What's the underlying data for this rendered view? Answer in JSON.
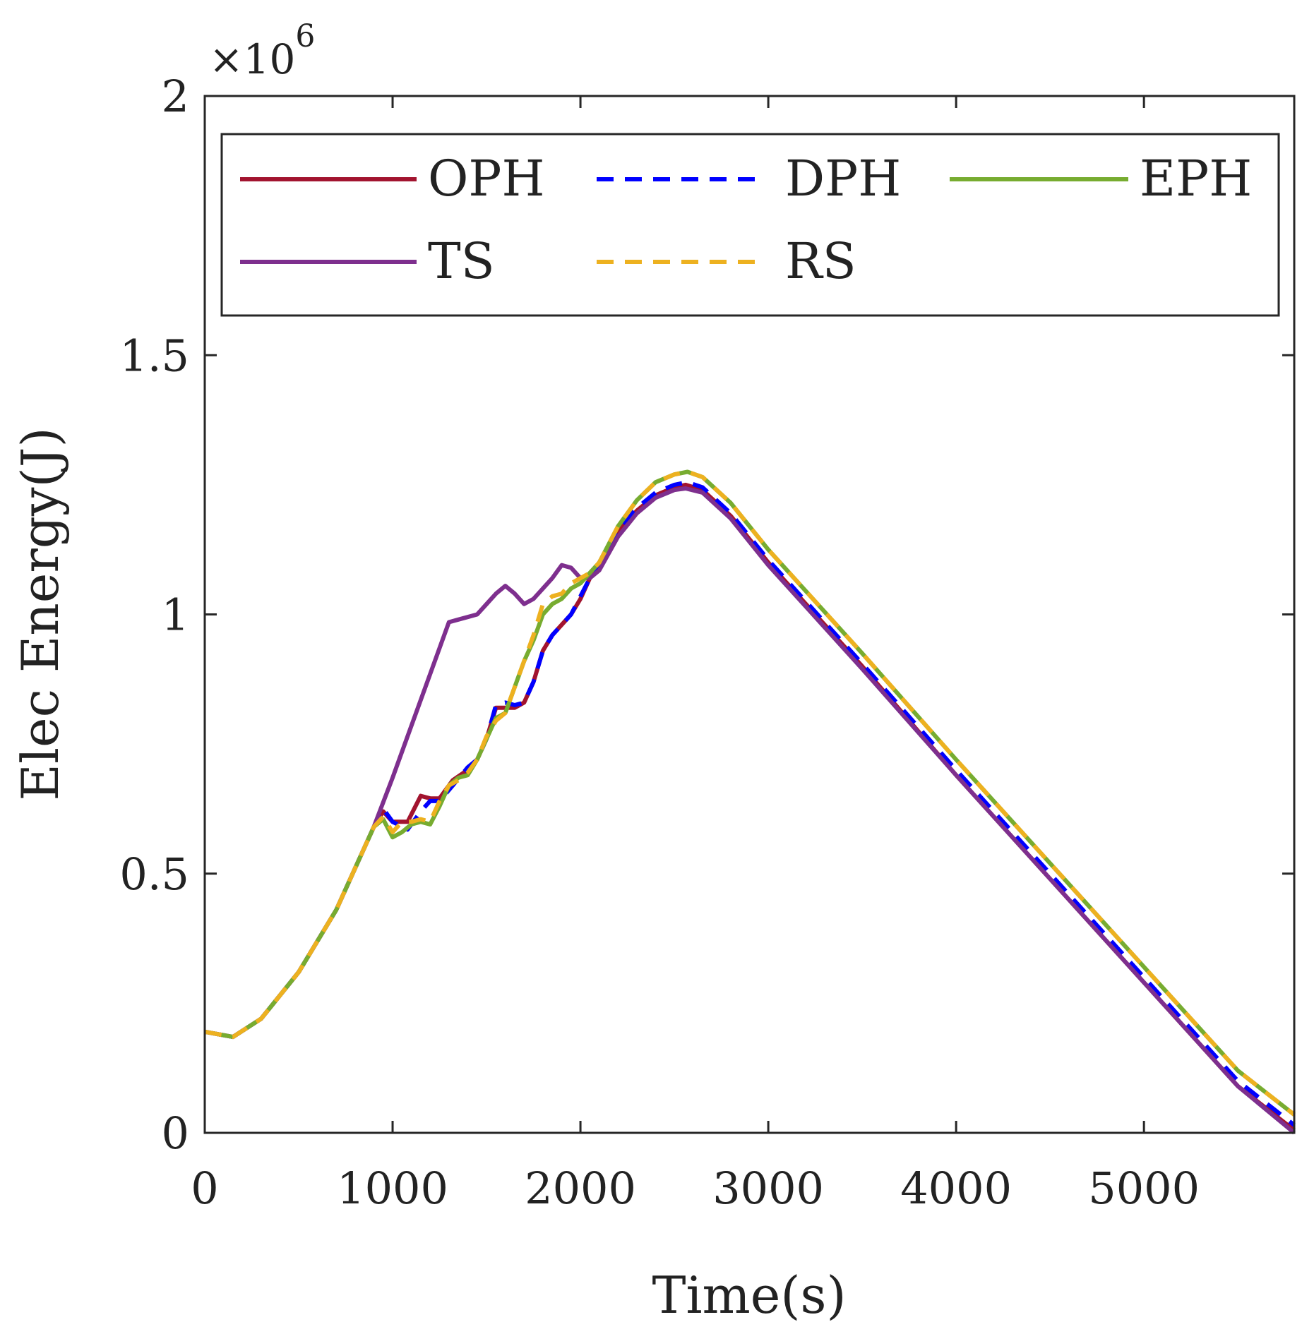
{
  "chart_data": {
    "type": "line",
    "xlabel": "Time(s)",
    "ylabel": "Elec Energy(J)",
    "y_multiplier": "×10",
    "y_multiplier_exponent": "6",
    "xlim": [
      0,
      5800
    ],
    "ylim": [
      0,
      2
    ],
    "x_ticks": [
      "0",
      "1000",
      "2000",
      "3000",
      "4000",
      "5000"
    ],
    "y_ticks": [
      "0",
      "0.5",
      "1",
      "1.5",
      "2"
    ],
    "grid": false,
    "legend_position": "top",
    "series": [
      {
        "name": "OPH",
        "color": "#a2142f",
        "dash": "solid",
        "x": [
          0,
          150,
          300,
          500,
          700,
          900,
          950,
          1000,
          1080,
          1150,
          1200,
          1250,
          1320,
          1400,
          1450,
          1500,
          1550,
          1600,
          1650,
          1700,
          1750,
          1800,
          1850,
          1900,
          1950,
          2000,
          2050,
          2100,
          2200,
          2300,
          2400,
          2500,
          2560,
          2650,
          2800,
          3000,
          3500,
          4000,
          4500,
          5000,
          5500,
          5800
        ],
        "y": [
          0.195,
          0.185,
          0.22,
          0.31,
          0.43,
          0.59,
          0.62,
          0.6,
          0.6,
          0.65,
          0.645,
          0.645,
          0.68,
          0.7,
          0.72,
          0.76,
          0.82,
          0.82,
          0.82,
          0.83,
          0.87,
          0.93,
          0.96,
          0.98,
          1.0,
          1.03,
          1.07,
          1.1,
          1.16,
          1.2,
          1.23,
          1.245,
          1.25,
          1.24,
          1.19,
          1.1,
          0.9,
          0.69,
          0.49,
          0.29,
          0.09,
          0.005
        ]
      },
      {
        "name": "DPH",
        "color": "#0000ff",
        "dash": "dashed",
        "x": [
          0,
          150,
          300,
          500,
          700,
          900,
          950,
          1000,
          1080,
          1150,
          1200,
          1250,
          1320,
          1400,
          1450,
          1500,
          1550,
          1600,
          1650,
          1700,
          1750,
          1800,
          1850,
          1900,
          1950,
          2000,
          2050,
          2100,
          2200,
          2300,
          2400,
          2500,
          2570,
          2650,
          2800,
          3000,
          3500,
          4000,
          4500,
          5000,
          5500,
          5800
        ],
        "y": [
          0.195,
          0.185,
          0.22,
          0.31,
          0.43,
          0.59,
          0.625,
          0.6,
          0.585,
          0.62,
          0.64,
          0.64,
          0.67,
          0.705,
          0.72,
          0.76,
          0.825,
          0.83,
          0.825,
          0.83,
          0.87,
          0.93,
          0.96,
          0.98,
          1.0,
          1.035,
          1.07,
          1.1,
          1.165,
          1.205,
          1.235,
          1.25,
          1.255,
          1.245,
          1.195,
          1.105,
          0.905,
          0.7,
          0.5,
          0.3,
          0.1,
          0.015
        ]
      },
      {
        "name": "EPH",
        "color": "#77ac30",
        "dash": "solid",
        "x": [
          0,
          150,
          300,
          500,
          700,
          900,
          950,
          1000,
          1050,
          1100,
          1150,
          1200,
          1250,
          1300,
          1350,
          1400,
          1450,
          1500,
          1550,
          1600,
          1650,
          1700,
          1750,
          1800,
          1850,
          1900,
          1950,
          2000,
          2050,
          2100,
          2200,
          2300,
          2400,
          2500,
          2570,
          2650,
          2800,
          3000,
          3500,
          4000,
          4500,
          5000,
          5500,
          5800
        ],
        "y": [
          0.195,
          0.185,
          0.22,
          0.31,
          0.43,
          0.59,
          0.605,
          0.57,
          0.58,
          0.595,
          0.6,
          0.595,
          0.63,
          0.67,
          0.685,
          0.69,
          0.72,
          0.76,
          0.8,
          0.81,
          0.86,
          0.91,
          0.95,
          1.0,
          1.02,
          1.03,
          1.05,
          1.06,
          1.08,
          1.1,
          1.17,
          1.22,
          1.255,
          1.27,
          1.275,
          1.265,
          1.215,
          1.125,
          0.925,
          0.72,
          0.52,
          0.32,
          0.12,
          0.035
        ]
      },
      {
        "name": "TS",
        "color": "#7e2f8e",
        "dash": "solid",
        "x": [
          0,
          150,
          300,
          500,
          700,
          900,
          1000,
          1100,
          1200,
          1300,
          1350,
          1400,
          1450,
          1500,
          1550,
          1600,
          1650,
          1700,
          1750,
          1800,
          1850,
          1900,
          1950,
          2000,
          2050,
          2100,
          2200,
          2300,
          2400,
          2500,
          2560,
          2650,
          2800,
          3000,
          3500,
          4000,
          4500,
          5000,
          5500,
          5800
        ],
        "y": [
          0.195,
          0.185,
          0.22,
          0.31,
          0.43,
          0.59,
          0.685,
          0.785,
          0.885,
          0.985,
          0.99,
          0.995,
          1.0,
          1.02,
          1.04,
          1.055,
          1.04,
          1.02,
          1.03,
          1.05,
          1.07,
          1.095,
          1.09,
          1.07,
          1.07,
          1.085,
          1.15,
          1.195,
          1.225,
          1.24,
          1.243,
          1.235,
          1.185,
          1.095,
          0.895,
          0.69,
          0.49,
          0.29,
          0.09,
          0.0
        ]
      },
      {
        "name": "RS",
        "color": "#edb120",
        "dash": "dashed",
        "x": [
          0,
          150,
          300,
          500,
          700,
          900,
          950,
          1000,
          1050,
          1100,
          1150,
          1200,
          1250,
          1300,
          1350,
          1400,
          1450,
          1500,
          1550,
          1600,
          1650,
          1700,
          1750,
          1800,
          1850,
          1900,
          1950,
          2000,
          2050,
          2100,
          2200,
          2300,
          2400,
          2500,
          2570,
          2650,
          2800,
          3000,
          3500,
          4000,
          4500,
          5000,
          5500,
          5800
        ],
        "y": [
          0.195,
          0.185,
          0.22,
          0.31,
          0.43,
          0.59,
          0.61,
          0.58,
          0.6,
          0.6,
          0.605,
          0.6,
          0.64,
          0.67,
          0.68,
          0.695,
          0.72,
          0.765,
          0.795,
          0.81,
          0.86,
          0.91,
          0.96,
          1.02,
          1.035,
          1.04,
          1.06,
          1.07,
          1.08,
          1.1,
          1.17,
          1.22,
          1.255,
          1.27,
          1.275,
          1.265,
          1.215,
          1.125,
          0.925,
          0.72,
          0.52,
          0.32,
          0.12,
          0.035
        ]
      }
    ]
  }
}
